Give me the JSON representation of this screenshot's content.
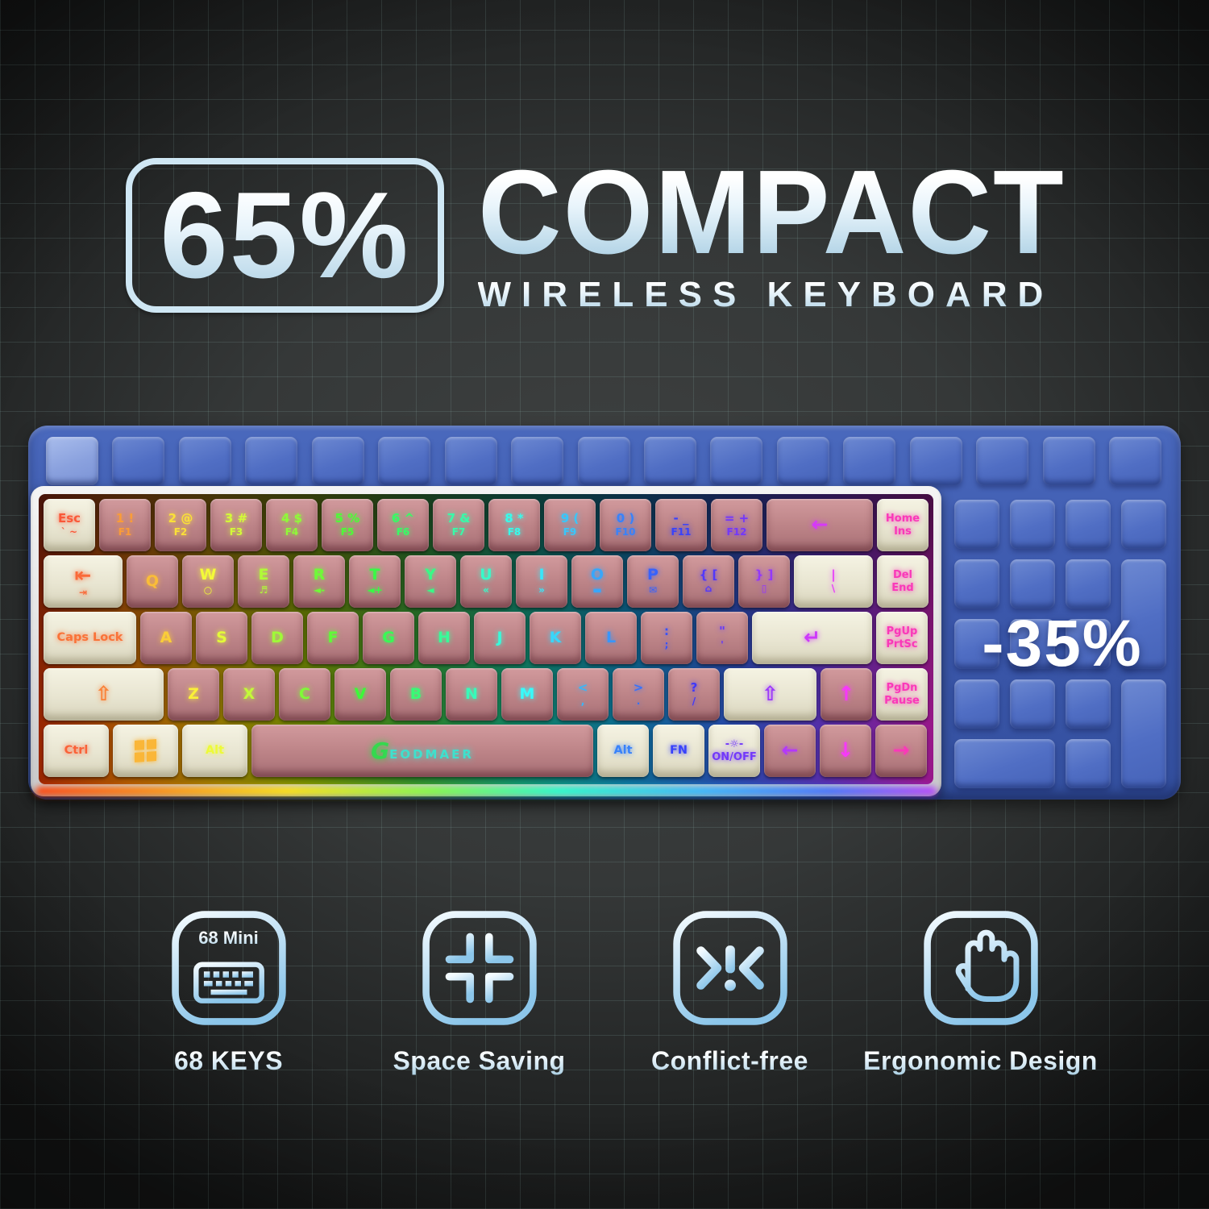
{
  "title": {
    "badge": "65%",
    "heading": "COMPACT",
    "subheading": "WIRELESS KEYBOARD"
  },
  "overlay": {
    "discount": "-35%"
  },
  "brand": {
    "logo_initial": "G",
    "logo_rest": "EODMAER"
  },
  "keyboard": {
    "rows": [
      [
        {
          "t": "Esc",
          "b": "` ~",
          "cap": "cream",
          "w": 1,
          "name": "esc"
        },
        {
          "t": "1 !",
          "b": "F1",
          "cap": "pink",
          "w": 1,
          "name": "1"
        },
        {
          "t": "2 @",
          "b": "F2",
          "cap": "pink",
          "w": 1,
          "name": "2"
        },
        {
          "t": "3 #",
          "b": "F3",
          "cap": "pink",
          "w": 1,
          "name": "3"
        },
        {
          "t": "4 $",
          "b": "F4",
          "cap": "pink",
          "w": 1,
          "name": "4"
        },
        {
          "t": "5 %",
          "b": "F5",
          "cap": "pink",
          "w": 1,
          "name": "5"
        },
        {
          "t": "6 ^",
          "b": "F6",
          "cap": "pink",
          "w": 1,
          "name": "6"
        },
        {
          "t": "7 &",
          "b": "F7",
          "cap": "pink",
          "w": 1,
          "name": "7"
        },
        {
          "t": "8 *",
          "b": "F8",
          "cap": "pink",
          "w": 1,
          "name": "8"
        },
        {
          "t": "9 (",
          "b": "F9",
          "cap": "pink",
          "w": 1,
          "name": "9"
        },
        {
          "t": "0 )",
          "b": "F10",
          "cap": "pink",
          "w": 1,
          "name": "0"
        },
        {
          "t": "- _",
          "b": "F11",
          "cap": "pink",
          "w": 1,
          "name": "minus"
        },
        {
          "t": "= +",
          "b": "F12",
          "cap": "pink",
          "w": 1,
          "name": "equals"
        },
        {
          "t": "←",
          "cap": "pink",
          "w": 2,
          "name": "backspace",
          "big": true
        },
        {
          "t": "Home",
          "b": "Ins",
          "cap": "cream",
          "w": 1,
          "name": "home-ins",
          "small": true
        }
      ],
      [
        {
          "t": "⇤",
          "b": "⇥",
          "cap": "cream",
          "w": 1.5,
          "name": "tab",
          "big": true
        },
        {
          "t": "Q",
          "cap": "pink",
          "w": 1,
          "name": "q",
          "single": true
        },
        {
          "t": "W",
          "b": "○",
          "cap": "pink",
          "w": 1,
          "name": "w",
          "single": true
        },
        {
          "t": "E",
          "b": "♬",
          "cap": "pink",
          "w": 1,
          "name": "e",
          "single": true
        },
        {
          "t": "R",
          "b": "◄-",
          "cap": "pink",
          "w": 1,
          "name": "r",
          "single": true
        },
        {
          "t": "T",
          "b": "◄+",
          "cap": "pink",
          "w": 1,
          "name": "t",
          "single": true
        },
        {
          "t": "Y",
          "b": "◄",
          "cap": "pink",
          "w": 1,
          "name": "y",
          "single": true
        },
        {
          "t": "U",
          "b": "«",
          "cap": "pink",
          "w": 1,
          "name": "u",
          "single": true
        },
        {
          "t": "I",
          "b": "»",
          "cap": "pink",
          "w": 1,
          "name": "i",
          "single": true
        },
        {
          "t": "O",
          "b": "▬",
          "cap": "pink",
          "w": 1,
          "name": "o",
          "single": true
        },
        {
          "t": "P",
          "b": "✉",
          "cap": "pink",
          "w": 1,
          "name": "p",
          "single": true
        },
        {
          "t": "{ [",
          "b": "⌂",
          "cap": "pink",
          "w": 1,
          "name": "left-bracket"
        },
        {
          "t": "} ]",
          "b": "▯",
          "cap": "pink",
          "w": 1,
          "name": "right-bracket"
        },
        {
          "t": "|",
          "b": "\\",
          "cap": "cream",
          "w": 1.5,
          "name": "backslash"
        },
        {
          "t": "Del",
          "b": "End",
          "cap": "cream",
          "w": 1,
          "name": "del-end",
          "small": true
        }
      ],
      [
        {
          "t": "Caps Lock",
          "cap": "cream",
          "w": 1.75,
          "name": "caps-lock",
          "label": true
        },
        {
          "t": "A",
          "cap": "pink",
          "w": 1,
          "name": "a",
          "single": true
        },
        {
          "t": "S",
          "cap": "pink",
          "w": 1,
          "name": "s",
          "single": true
        },
        {
          "t": "D",
          "cap": "pink",
          "w": 1,
          "name": "d",
          "single": true
        },
        {
          "t": "F",
          "cap": "pink",
          "w": 1,
          "name": "f",
          "single": true
        },
        {
          "t": "G",
          "cap": "pink",
          "w": 1,
          "name": "g",
          "single": true
        },
        {
          "t": "H",
          "cap": "pink",
          "w": 1,
          "name": "h",
          "single": true
        },
        {
          "t": "J",
          "cap": "pink",
          "w": 1,
          "name": "j",
          "single": true
        },
        {
          "t": "K",
          "cap": "pink",
          "w": 1,
          "name": "k",
          "single": true
        },
        {
          "t": "L",
          "cap": "pink",
          "w": 1,
          "name": "l",
          "single": true
        },
        {
          "t": ":",
          "b": ";",
          "cap": "pink",
          "w": 1,
          "name": "semicolon"
        },
        {
          "t": "\"",
          "b": "'",
          "cap": "pink",
          "w": 1,
          "name": "quote"
        },
        {
          "t": "↵",
          "cap": "cream",
          "w": 2.25,
          "name": "enter",
          "big": true
        },
        {
          "t": "PgUp",
          "b": "PrtSc",
          "cap": "cream",
          "w": 1,
          "name": "pgup-prtsc",
          "small": true
        }
      ],
      [
        {
          "t": "⇧",
          "cap": "cream",
          "w": 2.25,
          "name": "left-shift",
          "big": true
        },
        {
          "t": "Z",
          "cap": "pink",
          "w": 1,
          "name": "z",
          "single": true
        },
        {
          "t": "X",
          "cap": "pink",
          "w": 1,
          "name": "x",
          "single": true
        },
        {
          "t": "C",
          "cap": "pink",
          "w": 1,
          "name": "c",
          "single": true
        },
        {
          "t": "V",
          "cap": "pink",
          "w": 1,
          "name": "v",
          "single": true
        },
        {
          "t": "B",
          "cap": "pink",
          "w": 1,
          "name": "b",
          "single": true
        },
        {
          "t": "N",
          "cap": "pink",
          "w": 1,
          "name": "n",
          "single": true
        },
        {
          "t": "M",
          "cap": "pink",
          "w": 1,
          "name": "m",
          "single": true
        },
        {
          "t": "<",
          "b": ",",
          "cap": "pink",
          "w": 1,
          "name": "comma"
        },
        {
          "t": ">",
          "b": ".",
          "cap": "pink",
          "w": 1,
          "name": "period"
        },
        {
          "t": "?",
          "b": "/",
          "cap": "pink",
          "w": 1,
          "name": "slash"
        },
        {
          "t": "⇧",
          "cap": "cream",
          "w": 1.75,
          "name": "right-shift",
          "big": true
        },
        {
          "t": "↑",
          "cap": "pink",
          "w": 1,
          "name": "arrow-up",
          "big": true
        },
        {
          "t": "PgDn",
          "b": "Pause",
          "cap": "cream",
          "w": 1,
          "name": "pgdn-pause",
          "small": true
        }
      ],
      [
        {
          "t": "Ctrl",
          "cap": "cream",
          "w": 1.25,
          "name": "ctrl",
          "label": true
        },
        {
          "cap": "cream",
          "w": 1.25,
          "name": "win",
          "win": true
        },
        {
          "t": "Alt",
          "cap": "cream",
          "w": 1.25,
          "name": "left-alt",
          "label": true
        },
        {
          "cap": "pink",
          "w": 6.25,
          "name": "space",
          "space": true
        },
        {
          "t": "Alt",
          "cap": "cream",
          "w": 1,
          "name": "right-alt",
          "label": true
        },
        {
          "t": "FN",
          "cap": "cream",
          "w": 1,
          "name": "fn",
          "label": true
        },
        {
          "t": "-☼-",
          "b": "ON/OFF",
          "cap": "cream",
          "w": 1,
          "name": "backlight-on-off",
          "small": true
        },
        {
          "t": "←",
          "cap": "pink",
          "w": 1,
          "name": "arrow-left",
          "big": true
        },
        {
          "t": "↓",
          "cap": "pink",
          "w": 1,
          "name": "arrow-down",
          "big": true
        },
        {
          "t": "→",
          "cap": "pink",
          "w": 1,
          "name": "arrow-right",
          "big": true
        }
      ]
    ]
  },
  "features": [
    {
      "icon": "mini-keyboard-icon",
      "icon_text": "68 Mini",
      "label": "68 KEYS"
    },
    {
      "icon": "compress-icon",
      "label": "Space Saving"
    },
    {
      "icon": "conflict-icon",
      "label": "Conflict-free"
    },
    {
      "icon": "hand-icon",
      "label": "Ergonomic Design"
    }
  ]
}
